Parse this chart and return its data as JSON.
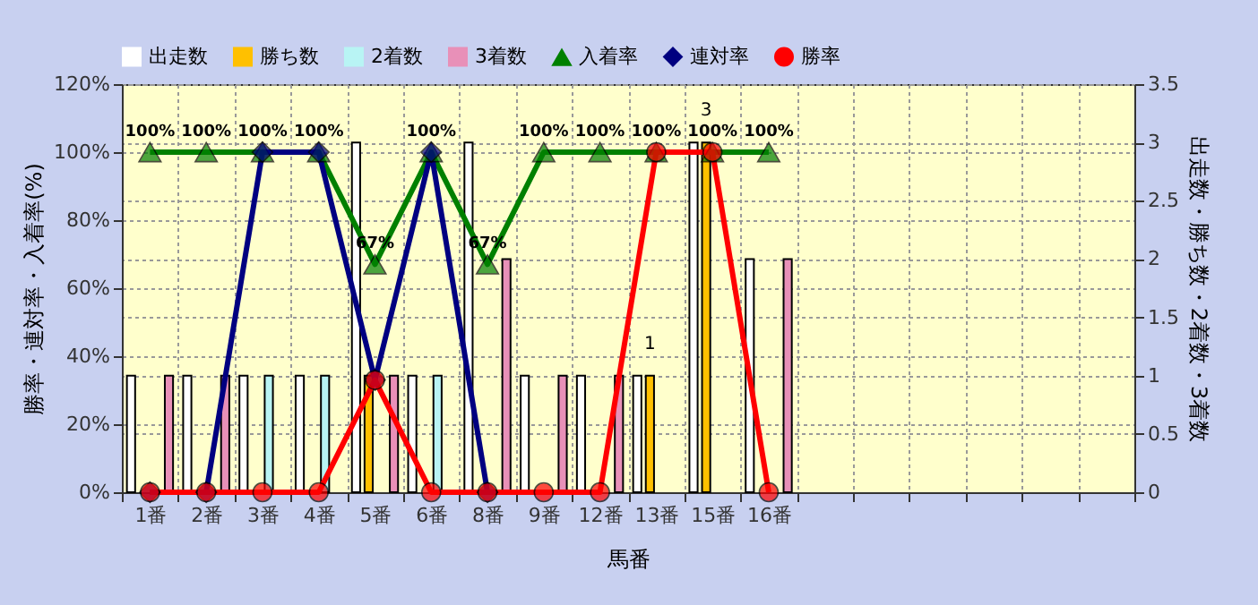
{
  "chart_data": {
    "type": "bar",
    "xlabel": "馬番",
    "ylabel": "勝率・連対率・入着率(%)",
    "y2label": "出走数・勝ち数・2着数・3着数",
    "categories": [
      "1番",
      "2番",
      "3番",
      "4番",
      "5番",
      "6番",
      "8番",
      "9番",
      "12番",
      "13番",
      "15番",
      "16番",
      null,
      null,
      null,
      null,
      null,
      null
    ],
    "series": [
      {
        "name": "出走数",
        "axis": "y2",
        "color": "#ffffff",
        "values": [
          1,
          1,
          1,
          1,
          3,
          1,
          3,
          1,
          1,
          1,
          3,
          2,
          null,
          null,
          null,
          null,
          null,
          null
        ]
      },
      {
        "name": "勝ち数",
        "axis": "y2",
        "color": "#ffc000",
        "values": [
          null,
          null,
          null,
          null,
          1,
          null,
          null,
          null,
          null,
          1,
          3,
          null,
          null,
          null,
          null,
          null,
          null,
          null
        ],
        "value_labels": [
          null,
          null,
          null,
          null,
          null,
          null,
          null,
          null,
          null,
          "1",
          "3",
          null,
          null,
          null,
          null,
          null,
          null,
          null
        ]
      },
      {
        "name": "2着数",
        "axis": "y2",
        "color": "#b8f4f4",
        "values": [
          null,
          null,
          1,
          1,
          null,
          1,
          null,
          null,
          null,
          null,
          null,
          null,
          null,
          null,
          null,
          null,
          null,
          null
        ]
      },
      {
        "name": "3着数",
        "axis": "y2",
        "color": "#e890b8",
        "values": [
          1,
          1,
          null,
          null,
          1,
          null,
          2,
          1,
          1,
          null,
          null,
          2,
          null,
          null,
          null,
          null,
          null,
          null
        ]
      },
      {
        "name": "入着率",
        "type": "line",
        "marker": "triangle",
        "color": "#008000",
        "values": [
          100,
          100,
          100,
          100,
          67,
          100,
          67,
          100,
          100,
          100,
          100,
          100,
          null,
          null,
          null,
          null,
          null,
          null
        ],
        "value_labels": [
          "100%",
          "100%",
          "100%",
          "100%",
          "67%",
          "100%",
          "67%",
          "100%",
          "100%",
          "100%",
          "100%",
          "100%",
          null,
          null,
          null,
          null,
          null,
          null
        ]
      },
      {
        "name": "連対率",
        "type": "line",
        "marker": "diamond",
        "color": "#000080",
        "values": [
          0,
          0,
          100,
          100,
          33,
          100,
          0,
          null,
          null,
          null,
          null,
          null,
          null,
          null,
          null,
          null,
          null,
          null
        ]
      },
      {
        "name": "勝率",
        "type": "line",
        "marker": "circle",
        "color": "#ff0000",
        "values": [
          0,
          0,
          0,
          0,
          33,
          0,
          0,
          0,
          0,
          100,
          100,
          0,
          null,
          null,
          null,
          null,
          null,
          null
        ]
      }
    ],
    "ylim": [
      0,
      120
    ],
    "yticks": [
      {
        "value": 0,
        "label": "0%"
      },
      {
        "value": 20,
        "label": "20%"
      },
      {
        "value": 40,
        "label": "40%"
      },
      {
        "value": 60,
        "label": "60%"
      },
      {
        "value": 80,
        "label": "80%"
      },
      {
        "value": 100,
        "label": "100%"
      },
      {
        "value": 120,
        "label": "120%"
      }
    ],
    "y2lim": [
      0,
      3.5
    ],
    "y2ticks": [
      0,
      0.5,
      1,
      1.5,
      2,
      2.5,
      3,
      3.5
    ],
    "grid": true,
    "legend": "top"
  }
}
